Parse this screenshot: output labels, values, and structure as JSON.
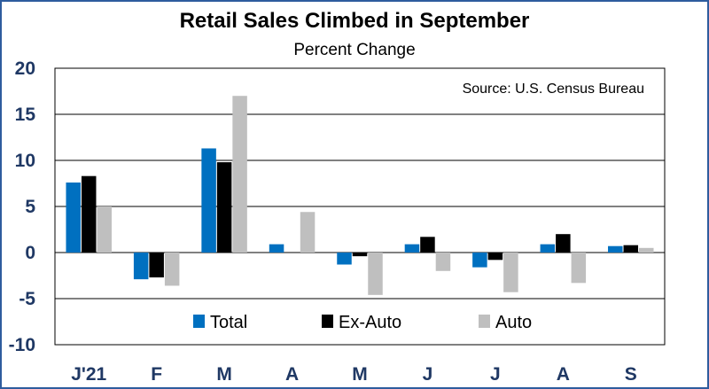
{
  "chart_data": {
    "type": "bar",
    "title": "Retail Sales Climbed in September",
    "subtitle": "Percent Change",
    "source_note": "Source: U.S. Census Bureau",
    "categories": [
      "J'21",
      "F",
      "M",
      "A",
      "M",
      "J",
      "J",
      "A",
      "S"
    ],
    "series": [
      {
        "name": "Total",
        "color": "#0070c0",
        "values": [
          7.6,
          -2.9,
          11.3,
          0.9,
          -1.3,
          0.9,
          -1.6,
          0.9,
          0.7
        ]
      },
      {
        "name": "Ex-Auto",
        "color": "#000000",
        "values": [
          8.3,
          -2.7,
          9.8,
          0.0,
          -0.4,
          1.7,
          -0.8,
          2.0,
          0.8
        ]
      },
      {
        "name": "Auto",
        "color": "#bfbfbf",
        "values": [
          5.0,
          -3.6,
          17.0,
          4.4,
          -4.6,
          -2.0,
          -4.3,
          -3.3,
          0.5
        ]
      }
    ],
    "yticks": [
      "20",
      "15",
      "10",
      "5",
      "0",
      "-5",
      "-10"
    ],
    "ylim": [
      -10,
      20
    ],
    "grid": true,
    "legend_position": "bottom-center",
    "xlabel": "",
    "ylabel": ""
  }
}
